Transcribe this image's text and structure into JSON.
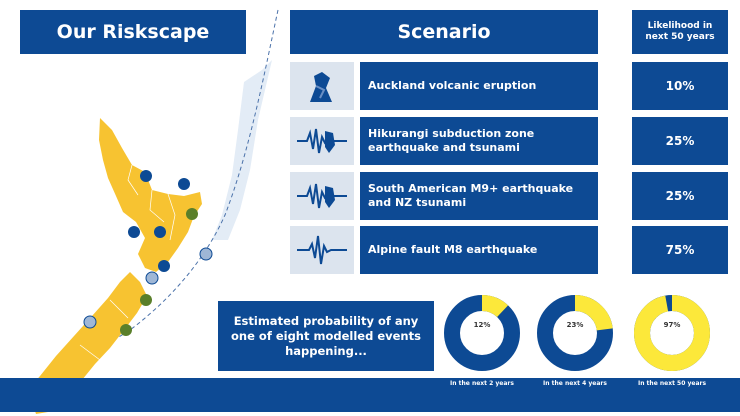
{
  "title": "Our Riskscape",
  "scenario_header": "Scenario",
  "likelihood_header": "Likelihood in next 50 years",
  "scenarios": [
    {
      "label": "Auckland volcanic eruption",
      "likelihood": "10%",
      "icon": "volcano-icon"
    },
    {
      "label": "Hikurangi subduction zone earthquake and tsunami",
      "likelihood": "25%",
      "icon": "seismic-wave-icon"
    },
    {
      "label": "South American M9+ earthquake and NZ tsunami",
      "likelihood": "25%",
      "icon": "seismic-wave-icon"
    },
    {
      "label": "Alpine fault M8 earthquake",
      "likelihood": "75%",
      "icon": "seismic-wave-icon"
    }
  ],
  "probability_caption": "Estimated probability of any one of eight modelled events happening...",
  "chart_data": {
    "type": "pie",
    "title": "",
    "charts": [
      {
        "label": "12%",
        "value": 12,
        "period": "In the next 2 years"
      },
      {
        "label": "23%",
        "value": 23,
        "period": "In the next 4 years"
      },
      {
        "label": "97%",
        "value": 97,
        "period": "In the next 50 years"
      }
    ]
  },
  "colors": {
    "navy": "#0d4a94",
    "yellow": "#fce83a",
    "map_yellow": "#f7c331",
    "icon_bg": "#dce4ee"
  }
}
